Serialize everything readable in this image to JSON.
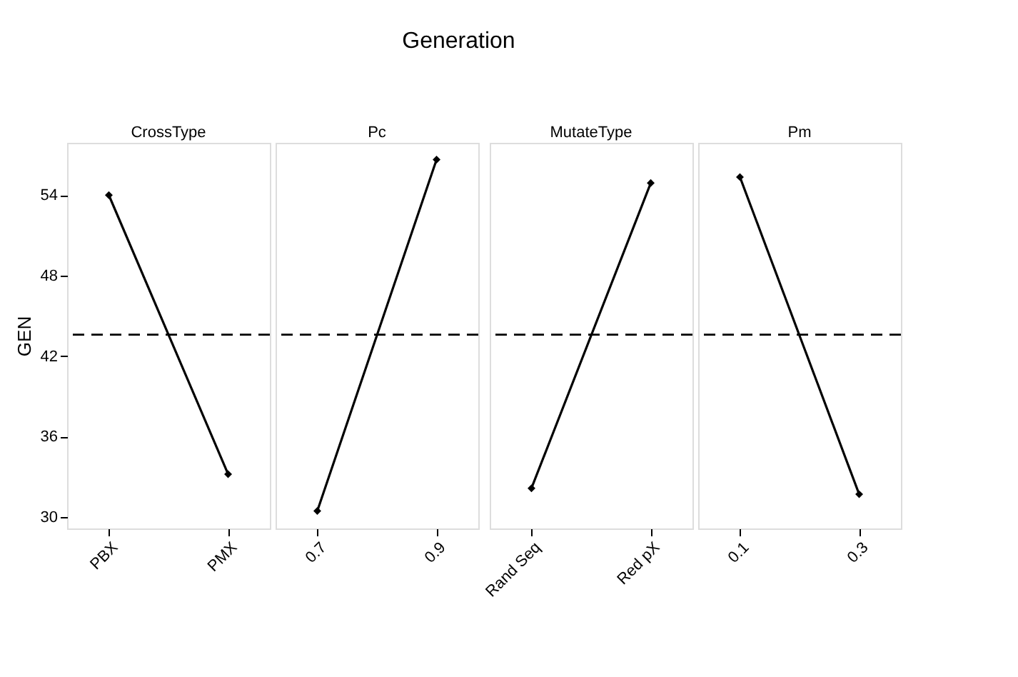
{
  "chart_data": [
    {
      "type": "line",
      "title": "CrossType",
      "ylabel": "GEN",
      "annotations": [
        "Generation"
      ],
      "categories": [
        "PBX",
        "PMX"
      ],
      "series": [
        {
          "color": "#000000",
          "values": [
            54.0,
            33.2
          ]
        }
      ],
      "ylim": [
        29.15,
        57.9
      ],
      "yticks": [
        30,
        36,
        42,
        48,
        54
      ],
      "ref_lines": [
        {
          "axis": "y",
          "value": 43.6,
          "line_style": "dashed",
          "color": "#000000"
        }
      ],
      "marker": "diamond",
      "line_style": "solid",
      "grid": false,
      "legend": false
    },
    {
      "type": "line",
      "title": "Pc",
      "categories": [
        "0.7",
        "0.9"
      ],
      "series": [
        {
          "color": "#000000",
          "values": [
            30.45,
            56.65
          ]
        }
      ],
      "ylim": [
        29.15,
        57.9
      ],
      "yticks": [
        30,
        36,
        42,
        48,
        54
      ],
      "tick_labels": "x",
      "ref_lines": [
        {
          "axis": "y",
          "value": 43.6,
          "line_style": "dashed",
          "color": "#000000"
        }
      ],
      "marker": "diamond",
      "line_style": "solid",
      "grid": false,
      "legend": false
    },
    {
      "type": "line",
      "title": "MutateType",
      "categories": [
        "Rand Seq",
        "Red pX"
      ],
      "series": [
        {
          "color": "#000000",
          "values": [
            32.15,
            54.9
          ]
        }
      ],
      "ylim": [
        29.15,
        57.9
      ],
      "yticks": [
        30,
        36,
        42,
        48,
        54
      ],
      "tick_labels": "x",
      "ref_lines": [
        {
          "axis": "y",
          "value": 43.6,
          "line_style": "dashed",
          "color": "#000000"
        }
      ],
      "marker": "diamond",
      "line_style": "solid",
      "grid": false,
      "legend": false
    },
    {
      "type": "line",
      "title": "Pm",
      "categories": [
        "0.1",
        "0.3"
      ],
      "series": [
        {
          "color": "#000000",
          "values": [
            55.35,
            31.7
          ]
        }
      ],
      "ylim": [
        29.15,
        57.9
      ],
      "yticks": [
        30,
        36,
        42,
        48,
        54
      ],
      "tick_labels": "x",
      "ref_lines": [
        {
          "axis": "y",
          "value": 43.6,
          "line_style": "dashed",
          "color": "#000000"
        }
      ],
      "marker": "diamond",
      "line_style": "solid",
      "grid": false,
      "legend": false
    }
  ]
}
